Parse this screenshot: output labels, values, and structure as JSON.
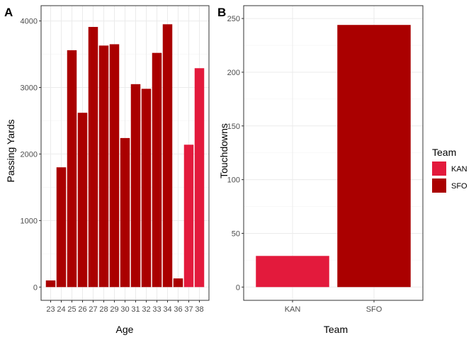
{
  "colors": {
    "KAN": "#e31a3c",
    "SFO": "#aa0000",
    "grid_major": "#ebebeb",
    "grid_minor": "#f5f5f5",
    "frame": "#333333"
  },
  "chart_data": [
    {
      "type": "bar",
      "tag": "A",
      "xlabel": "Age",
      "ylabel": "Passing Yards",
      "ylim": [
        0,
        4150
      ],
      "y_ticks": [
        0,
        1000,
        2000,
        3000,
        4000
      ],
      "y_tick_labels": [
        "0",
        "1000",
        "2000",
        "3000",
        "4000"
      ],
      "categories": [
        "23",
        "24",
        "25",
        "26",
        "27",
        "28",
        "29",
        "30",
        "31",
        "32",
        "33",
        "34",
        "36",
        "37",
        "38"
      ],
      "values": [
        100,
        1800,
        3560,
        2620,
        3910,
        3630,
        3650,
        2240,
        3050,
        2980,
        3520,
        3950,
        130,
        2140,
        3290
      ],
      "teams": [
        "SFO",
        "SFO",
        "SFO",
        "SFO",
        "SFO",
        "SFO",
        "SFO",
        "SFO",
        "SFO",
        "SFO",
        "SFO",
        "SFO",
        "SFO",
        "KAN",
        "KAN"
      ],
      "grid": true
    },
    {
      "type": "bar",
      "tag": "B",
      "xlabel": "Team",
      "ylabel": "Touchdowns",
      "ylim": [
        0,
        257
      ],
      "y_ticks": [
        0,
        50,
        100,
        150,
        200,
        250
      ],
      "y_tick_labels": [
        "0",
        "50",
        "100",
        "150",
        "200",
        "250"
      ],
      "categories": [
        "KAN",
        "SFO"
      ],
      "values": [
        29,
        244
      ],
      "teams": [
        "KAN",
        "SFO"
      ],
      "grid": true
    }
  ],
  "legend": {
    "title": "Team",
    "position": "right",
    "items": [
      {
        "label": "KAN",
        "team": "KAN"
      },
      {
        "label": "SFO",
        "team": "SFO"
      }
    ]
  }
}
